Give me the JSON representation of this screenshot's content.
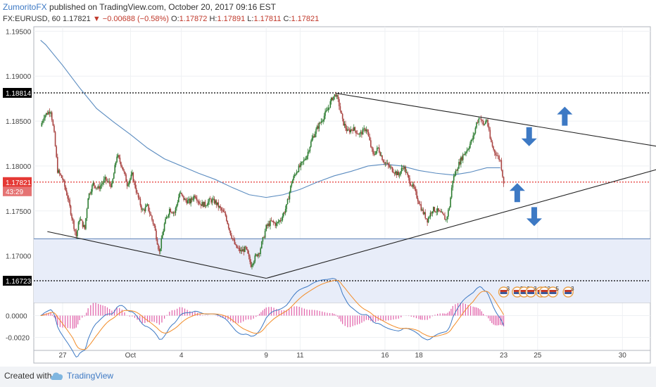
{
  "header": {
    "author": "ZumoritoFX",
    "published": " published on TradingView.com, October 20, 2017 09:16 EST",
    "symbol": "FX:EURUSD, 60",
    "last": "1.17821",
    "change": "−0.00688 (−0.58%)",
    "o_label": "O:",
    "o_value": "1.17872",
    "h_label": "H:",
    "h_value": "1.17891",
    "l_label": "L:",
    "l_value": "1.17811",
    "c_label": "C:",
    "c_value": "1.17821"
  },
  "footer": {
    "created_with": "Created with",
    "brand": "TradingView"
  },
  "chart_data": {
    "type": "candlestick",
    "symbol": "FX:EURUSD",
    "interval": "60",
    "ylim": [
      1.1648,
      1.1955
    ],
    "y_ticks": [
      "1.19500",
      "1.19000",
      "1.18500",
      "1.18000",
      "1.17500",
      "1.17000"
    ],
    "x_ticks": [
      {
        "label": "27",
        "day": 0
      },
      {
        "label": "Oct",
        "day": 4
      },
      {
        "label": "4",
        "day": 7
      },
      {
        "label": "9",
        "day": 12
      },
      {
        "label": "11",
        "day": 14
      },
      {
        "label": "16",
        "day": 19
      },
      {
        "label": "18",
        "day": 21
      },
      {
        "label": "23",
        "day": 26
      },
      {
        "label": "25",
        "day": 28
      },
      {
        "label": "30",
        "day": 33
      }
    ],
    "price_path": [
      [
        -1.3,
        1.1844
      ],
      [
        -1.1,
        1.1856
      ],
      [
        -0.7,
        1.1862
      ],
      [
        -0.5,
        1.1835
      ],
      [
        -0.3,
        1.1795
      ],
      [
        0.0,
        1.1785
      ],
      [
        0.3,
        1.1765
      ],
      [
        0.6,
        1.1738
      ],
      [
        0.8,
        1.1722
      ],
      [
        1.0,
        1.1742
      ],
      [
        1.3,
        1.173
      ],
      [
        1.5,
        1.1766
      ],
      [
        1.8,
        1.178
      ],
      [
        2.1,
        1.1775
      ],
      [
        2.5,
        1.1785
      ],
      [
        2.9,
        1.1778
      ],
      [
        3.2,
        1.1812
      ],
      [
        3.5,
        1.18
      ],
      [
        3.8,
        1.178
      ],
      [
        4.1,
        1.179
      ],
      [
        4.4,
        1.1768
      ],
      [
        4.7,
        1.175
      ],
      [
        5.0,
        1.1755
      ],
      [
        5.4,
        1.1733
      ],
      [
        5.7,
        1.1704
      ],
      [
        6.0,
        1.1735
      ],
      [
        6.3,
        1.1752
      ],
      [
        6.6,
        1.1748
      ],
      [
        6.9,
        1.177
      ],
      [
        7.2,
        1.1762
      ],
      [
        7.5,
        1.176
      ],
      [
        7.8,
        1.1768
      ],
      [
        8.1,
        1.1758
      ],
      [
        8.4,
        1.1757
      ],
      [
        8.7,
        1.1762
      ],
      [
        9.0,
        1.176
      ],
      [
        9.3,
        1.1752
      ],
      [
        9.6,
        1.1745
      ],
      [
        9.9,
        1.1725
      ],
      [
        10.2,
        1.171
      ],
      [
        10.5,
        1.1705
      ],
      [
        10.8,
        1.1708
      ],
      [
        11.1,
        1.169
      ],
      [
        11.4,
        1.17
      ],
      [
        11.6,
        1.1705
      ],
      [
        11.8,
        1.1718
      ],
      [
        12.0,
        1.1732
      ],
      [
        12.3,
        1.1738
      ],
      [
        12.6,
        1.1735
      ],
      [
        12.9,
        1.1742
      ],
      [
        13.2,
        1.1755
      ],
      [
        13.5,
        1.1782
      ],
      [
        13.8,
        1.1795
      ],
      [
        14.1,
        1.1802
      ],
      [
        14.4,
        1.1812
      ],
      [
        14.7,
        1.183
      ],
      [
        15.0,
        1.1842
      ],
      [
        15.3,
        1.1852
      ],
      [
        15.6,
        1.1862
      ],
      [
        15.9,
        1.1876
      ],
      [
        16.1,
        1.188
      ],
      [
        16.3,
        1.1868
      ],
      [
        16.5,
        1.185
      ],
      [
        16.8,
        1.1838
      ],
      [
        17.1,
        1.1842
      ],
      [
        17.5,
        1.1835
      ],
      [
        17.9,
        1.1842
      ],
      [
        18.3,
        1.1812
      ],
      [
        18.6,
        1.182
      ],
      [
        18.9,
        1.1806
      ],
      [
        19.2,
        1.18
      ],
      [
        19.5,
        1.1795
      ],
      [
        19.8,
        1.179
      ],
      [
        20.1,
        1.18
      ],
      [
        20.4,
        1.1785
      ],
      [
        20.7,
        1.1775
      ],
      [
        21.0,
        1.176
      ],
      [
        21.2,
        1.175
      ],
      [
        21.5,
        1.174
      ],
      [
        21.8,
        1.1752
      ],
      [
        22.1,
        1.175
      ],
      [
        22.4,
        1.1745
      ],
      [
        22.6,
        1.174
      ],
      [
        22.8,
        1.1755
      ],
      [
        23.0,
        1.1785
      ],
      [
        23.3,
        1.18
      ],
      [
        23.6,
        1.1812
      ],
      [
        23.9,
        1.182
      ],
      [
        24.2,
        1.1832
      ],
      [
        24.4,
        1.1848
      ],
      [
        24.6,
        1.1855
      ],
      [
        24.8,
        1.1845
      ],
      [
        25.0,
        1.1852
      ],
      [
        25.2,
        1.183
      ],
      [
        25.4,
        1.1818
      ],
      [
        25.6,
        1.1812
      ],
      [
        25.8,
        1.1806
      ],
      [
        26.0,
        1.1782
      ]
    ],
    "moving_average": [
      [
        -1.3,
        1.194
      ],
      [
        -1.0,
        1.1935
      ],
      [
        0.0,
        1.1912
      ],
      [
        1.0,
        1.1887
      ],
      [
        2.0,
        1.1864
      ],
      [
        3.0,
        1.1849
      ],
      [
        4.0,
        1.1835
      ],
      [
        5.0,
        1.182
      ],
      [
        6.0,
        1.1808
      ],
      [
        7.0,
        1.18
      ],
      [
        8.0,
        1.1792
      ],
      [
        9.0,
        1.1785
      ],
      [
        10.0,
        1.1776
      ],
      [
        11.0,
        1.1768
      ],
      [
        12.0,
        1.1765
      ],
      [
        13.0,
        1.1768
      ],
      [
        14.0,
        1.1774
      ],
      [
        15.0,
        1.1782
      ],
      [
        16.0,
        1.1789
      ],
      [
        17.0,
        1.1794
      ],
      [
        18.0,
        1.18
      ],
      [
        19.0,
        1.1802
      ],
      [
        20.0,
        1.18
      ],
      [
        21.0,
        1.1795
      ],
      [
        22.0,
        1.1792
      ],
      [
        23.0,
        1.179
      ],
      [
        24.0,
        1.1793
      ],
      [
        25.0,
        1.1798
      ],
      [
        25.8,
        1.1798
      ]
    ],
    "horizontal_levels": [
      {
        "price": 1.18814,
        "label": "1.18814",
        "style": "dotted",
        "color": "#000000"
      },
      {
        "price": 1.16723,
        "label": "1.16723",
        "style": "dotted",
        "color": "#000000"
      },
      {
        "price": 1.17821,
        "label": "1.17821",
        "style": "dotted",
        "color": "#e53935",
        "countdown": "43:29"
      }
    ],
    "support_zone": {
      "from": 1.1648,
      "to": 1.1719,
      "color": "#e8edf9",
      "border": "#5b7fb6"
    },
    "trendlines": [
      {
        "from": [
          -0.9,
          1.1727
        ],
        "to": [
          12.0,
          1.1675
        ]
      },
      {
        "from": [
          12.0,
          1.1675
        ],
        "to": [
          35.0,
          1.1796
        ]
      },
      {
        "from": [
          16.1,
          1.1881
        ],
        "to": [
          35.0,
          1.1822
        ]
      }
    ],
    "arrows": [
      {
        "day": 29.6,
        "price": 1.1855,
        "direction": "up"
      },
      {
        "day": 27.5,
        "price": 1.1833,
        "direction": "down"
      },
      {
        "day": 26.8,
        "price": 1.177,
        "direction": "up"
      },
      {
        "day": 27.8,
        "price": 1.1744,
        "direction": "down"
      }
    ],
    "events": [
      {
        "day": 26.0,
        "text": "3"
      },
      {
        "day": 26.8,
        "text": "3"
      },
      {
        "day": 27.2,
        "text": "3"
      },
      {
        "day": 27.6,
        "text": "3"
      },
      {
        "day": 28.2,
        "text": "8"
      },
      {
        "day": 28.4,
        "text": "3"
      },
      {
        "day": 28.9,
        "text": "5"
      },
      {
        "day": 29.8,
        "text": "3"
      }
    ],
    "oscillator": {
      "ylim": [
        -0.0032,
        0.0012
      ],
      "y_ticks": [
        "0.0000",
        "-0.0020"
      ],
      "macd_color": "#3d79c4",
      "signal_color": "#f28c28",
      "histogram_color": "#e05fa8"
    },
    "colors": {
      "up": "#2e7d32",
      "down": "#a94442",
      "ma": "#5b8cc0",
      "arrow": "#3d79c4"
    }
  }
}
